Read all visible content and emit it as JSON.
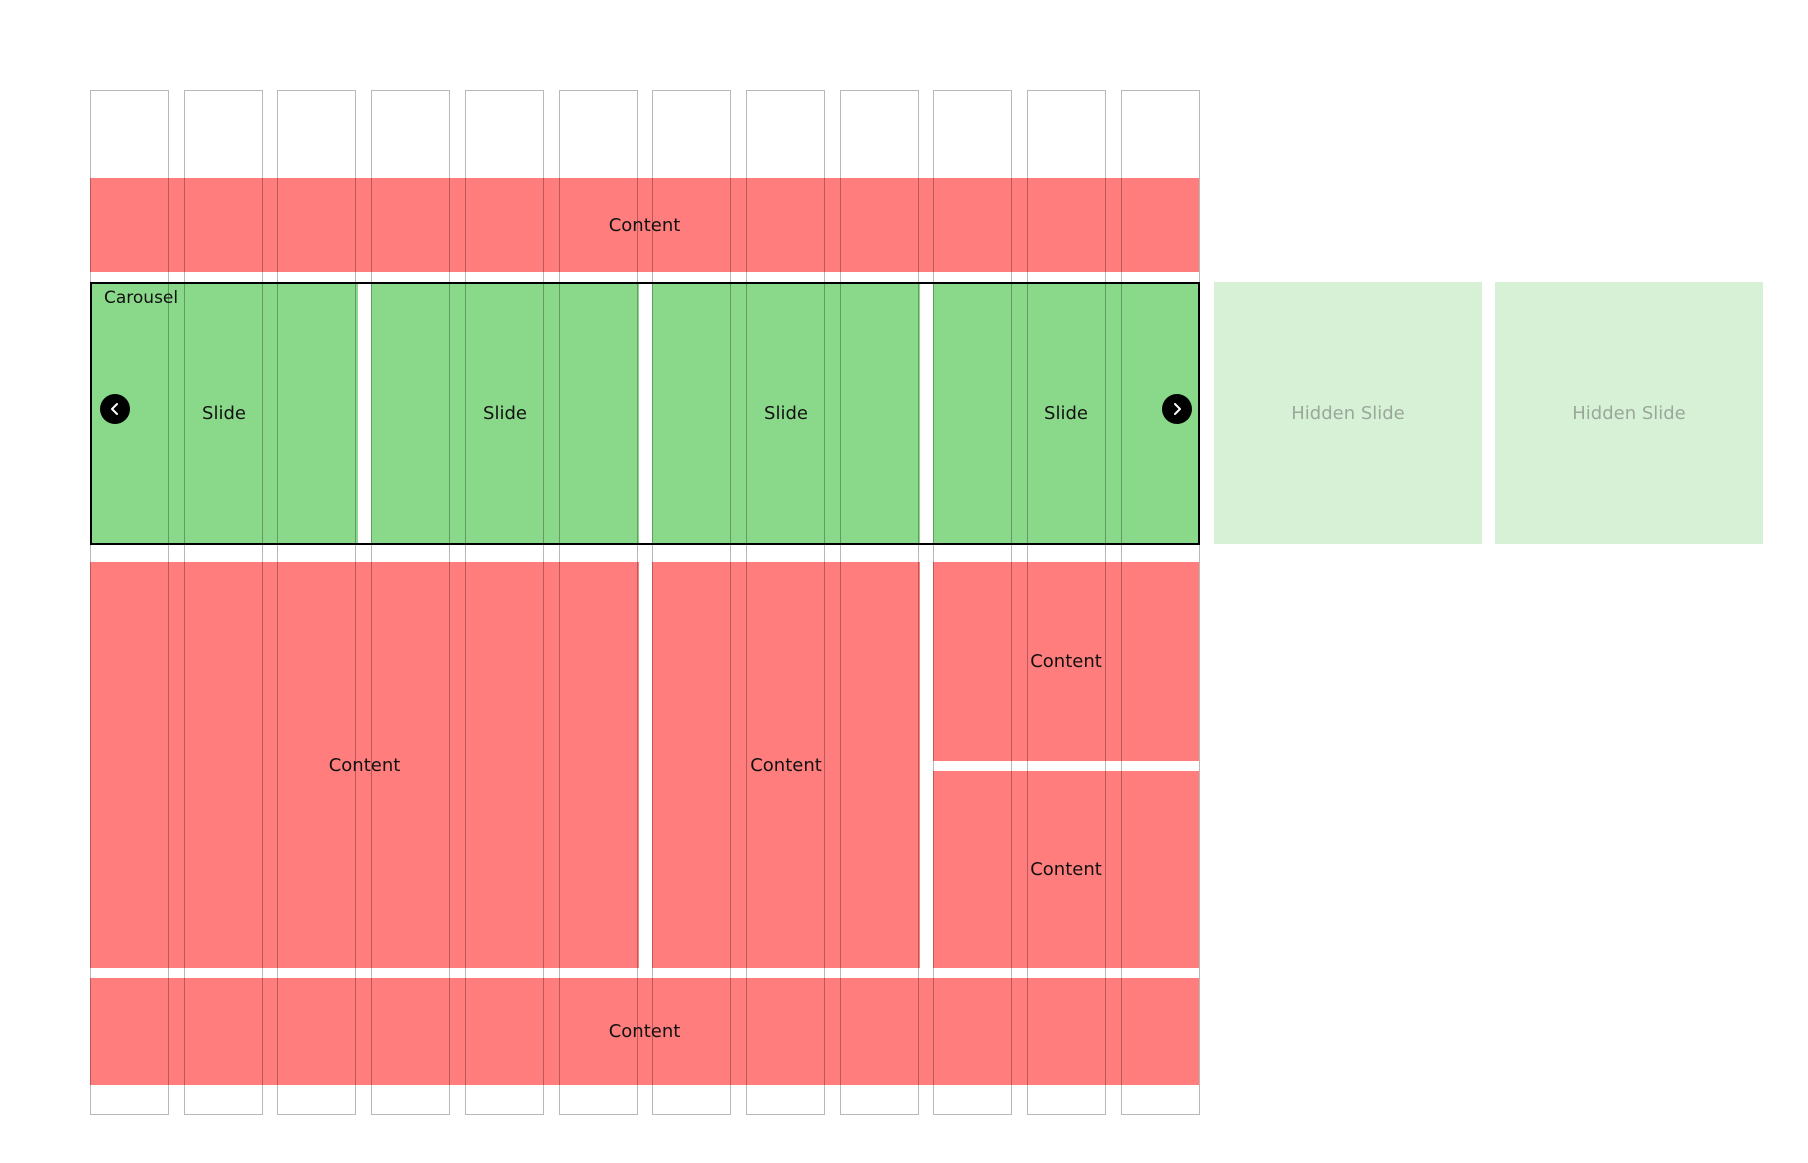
{
  "colors": {
    "content": "#ff7d7d",
    "slide": "#8ad98a",
    "hidden_slide": "#d6f1d6",
    "hidden_text": "#9aa89a",
    "grid_line": "#999999",
    "carousel_border": "#000000",
    "nav_button": "#000000"
  },
  "grid": {
    "column_count": 12
  },
  "header_content": {
    "label": "Content"
  },
  "carousel": {
    "label": "Carousel",
    "prev_icon": "chevron-left-icon",
    "next_icon": "chevron-right-icon",
    "slides": [
      {
        "label": "Slide"
      },
      {
        "label": "Slide"
      },
      {
        "label": "Slide"
      },
      {
        "label": "Slide"
      }
    ],
    "hidden_slides": [
      {
        "label": "Hidden Slide"
      },
      {
        "label": "Hidden Slide"
      }
    ]
  },
  "main_content": {
    "left_label": "Content",
    "middle_label": "Content",
    "right_top_label": "Content",
    "right_bottom_label": "Content"
  },
  "footer_content": {
    "label": "Content"
  }
}
